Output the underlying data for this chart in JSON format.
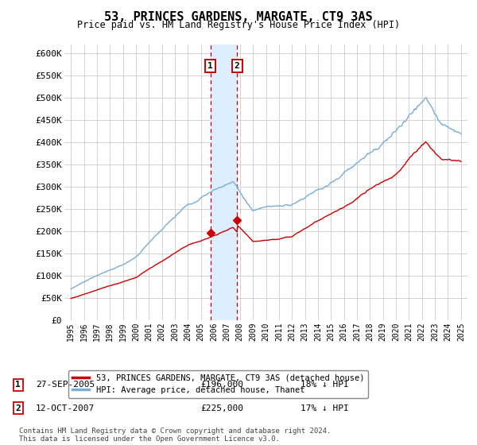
{
  "title": "53, PRINCES GARDENS, MARGATE, CT9 3AS",
  "subtitle": "Price paid vs. HM Land Registry's House Price Index (HPI)",
  "legend_entry1": "53, PRINCES GARDENS, MARGATE, CT9 3AS (detached house)",
  "legend_entry2": "HPI: Average price, detached house, Thanet",
  "transaction1_date": "27-SEP-2005",
  "transaction1_price": 196000,
  "transaction1_label": "18% ↓ HPI",
  "transaction2_date": "12-OCT-2007",
  "transaction2_price": 225000,
  "transaction2_label": "17% ↓ HPI",
  "transaction1_x": 2005.74,
  "transaction2_x": 2007.78,
  "ylim": [
    0,
    620000
  ],
  "xlim": [
    1994.5,
    2025.5
  ],
  "yticks": [
    0,
    50000,
    100000,
    150000,
    200000,
    250000,
    300000,
    350000,
    400000,
    450000,
    500000,
    550000,
    600000
  ],
  "ytick_labels": [
    "£0",
    "£50K",
    "£100K",
    "£150K",
    "£200K",
    "£250K",
    "£300K",
    "£350K",
    "£400K",
    "£450K",
    "£500K",
    "£550K",
    "£600K"
  ],
  "footnote": "Contains HM Land Registry data © Crown copyright and database right 2024.\nThis data is licensed under the Open Government Licence v3.0.",
  "bg_color": "#ffffff",
  "grid_color": "#cccccc",
  "line_color_red": "#cc0000",
  "line_color_blue": "#7aadd4",
  "shade_color": "#ddeeff",
  "vline_color": "#cc0000",
  "box_color": "#cc0000"
}
